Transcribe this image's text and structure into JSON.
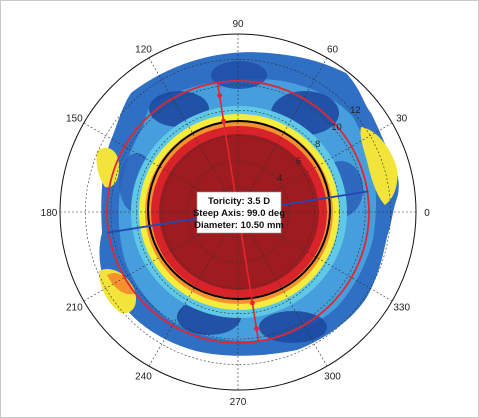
{
  "chart_data": {
    "type": "polar-heatmap",
    "title": "",
    "angle_ticks": [
      0,
      30,
      60,
      90,
      120,
      150,
      180,
      210,
      240,
      270,
      300,
      330
    ],
    "radial_ticks": [
      2,
      4,
      6,
      8,
      10,
      12
    ],
    "radial_range": [
      0,
      14
    ],
    "grid": true,
    "annotations": [
      "Toricity: 3.5 D",
      "Steep Axis: 99.0 deg",
      "Diameter: 10.50 mm"
    ],
    "steep_axis_deg": 99.0,
    "flat_axis_deg": 9.0,
    "diameter_mm": 10.5,
    "toricity_d": 3.5,
    "colors": {
      "center": "#9e1b20",
      "red": "#d42028",
      "orange": "#f57f2a",
      "yellow": "#f7e83a",
      "cyan": "#56c6ea",
      "blue_light": "#3f8fd6",
      "blue_dark": "#1f4fa8",
      "axis_line": "#2447b3",
      "marker_line": "#e3262f",
      "black_ring": "#000000"
    }
  }
}
